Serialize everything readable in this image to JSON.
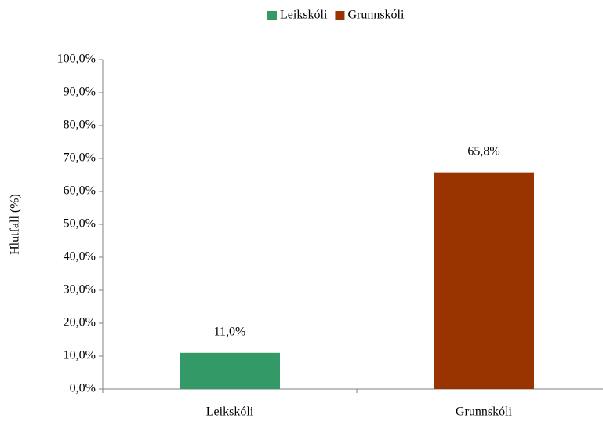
{
  "chart_data": {
    "type": "bar",
    "ylabel": "Hlutfall (%)",
    "categories": [
      "Leikskóli",
      "Grunnskóli"
    ],
    "series": [
      {
        "name": "Leikskóli",
        "color": "#339966",
        "values": [
          11.0,
          null
        ],
        "value_labels": [
          "11,0%",
          null
        ]
      },
      {
        "name": "Grunnskóli",
        "color": "#993300",
        "values": [
          null,
          65.8
        ],
        "value_labels": [
          null,
          "65,8%"
        ]
      }
    ],
    "ylim": [
      0,
      100
    ],
    "yticks": [
      {
        "value": 0,
        "label": "0,0%"
      },
      {
        "value": 10,
        "label": "10,0%"
      },
      {
        "value": 20,
        "label": "20,0%"
      },
      {
        "value": 30,
        "label": "30,0%"
      },
      {
        "value": 40,
        "label": "40,0%"
      },
      {
        "value": 50,
        "label": "50,0%"
      },
      {
        "value": 60,
        "label": "60,0%"
      },
      {
        "value": 70,
        "label": "70,0%"
      },
      {
        "value": 80,
        "label": "80,0%"
      },
      {
        "value": 90,
        "label": "90,0%"
      },
      {
        "value": 100,
        "label": "100,0%"
      }
    ],
    "legend": "top"
  }
}
